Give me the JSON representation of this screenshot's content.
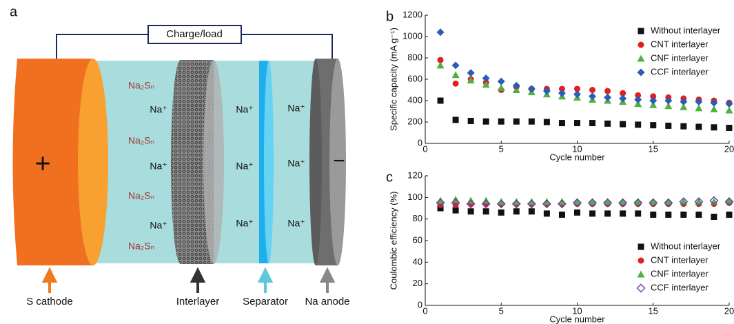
{
  "diagram": {
    "panel": "a",
    "wire_label": "Charge/load",
    "plus": "+",
    "minus": "−",
    "ions": [
      "Na₂Sₙ",
      "Na⁺",
      "Na₂Sₙ",
      "Na⁺",
      "Na₂Sₙ",
      "Na⁺",
      "Na₂Sₙ",
      "Na⁺",
      "Na⁺",
      "Na⁺",
      "Na⁺",
      "Na⁺",
      "Na⁺"
    ],
    "parts": [
      "S cathode",
      "Interlayer",
      "Separator",
      "Na anode"
    ]
  },
  "chart_data": [
    {
      "type": "scatter",
      "panel": "b",
      "xlabel": "Cycle number",
      "ylabel": "Specific capacity (mA g⁻¹)",
      "x": [
        1,
        2,
        3,
        4,
        5,
        6,
        7,
        8,
        9,
        10,
        11,
        12,
        13,
        14,
        15,
        16,
        17,
        18,
        19,
        20
      ],
      "xlim": [
        0,
        20
      ],
      "xticks": [
        0,
        5,
        10,
        15,
        20
      ],
      "ylim": [
        0,
        1200
      ],
      "yticks": [
        0,
        200,
        400,
        600,
        800,
        1000,
        1200
      ],
      "legend": "upper right",
      "series": [
        {
          "name": "Without interlayer",
          "color": "#111111",
          "marker": "square",
          "values": [
            400,
            220,
            210,
            205,
            205,
            205,
            205,
            200,
            190,
            190,
            190,
            185,
            180,
            175,
            170,
            165,
            160,
            155,
            150,
            145
          ]
        },
        {
          "name": "CNT interlayer",
          "color": "#e02020",
          "marker": "circle",
          "values": [
            780,
            560,
            600,
            570,
            500,
            530,
            510,
            510,
            510,
            510,
            500,
            490,
            470,
            450,
            440,
            430,
            420,
            410,
            400,
            380
          ]
        },
        {
          "name": "CNF interlayer",
          "color": "#50b040",
          "marker": "triangle",
          "values": [
            730,
            640,
            590,
            550,
            520,
            500,
            480,
            460,
            440,
            430,
            410,
            400,
            390,
            370,
            360,
            350,
            340,
            330,
            320,
            310
          ]
        },
        {
          "name": "CCF interlayer",
          "color": "#2a5cb8",
          "marker": "diamond",
          "values": [
            1040,
            730,
            660,
            610,
            580,
            540,
            510,
            490,
            470,
            460,
            440,
            430,
            420,
            410,
            400,
            400,
            390,
            390,
            380,
            370
          ]
        }
      ]
    },
    {
      "type": "scatter",
      "panel": "c",
      "xlabel": "Cycle number",
      "ylabel": "Coulombic efficiency (%)",
      "x": [
        1,
        2,
        3,
        4,
        5,
        6,
        7,
        8,
        9,
        10,
        11,
        12,
        13,
        14,
        15,
        16,
        17,
        18,
        19,
        20
      ],
      "xlim": [
        0,
        20
      ],
      "xticks": [
        0,
        5,
        10,
        15,
        20
      ],
      "ylim": [
        0,
        120
      ],
      "yticks": [
        0,
        20,
        40,
        60,
        80,
        100,
        120
      ],
      "legend": "lower right",
      "series": [
        {
          "name": "Without interlayer",
          "color": "#111111",
          "marker": "square",
          "values": [
            90,
            88,
            87,
            87,
            86,
            87,
            87,
            85,
            84,
            86,
            85,
            85,
            85,
            85,
            84,
            84,
            84,
            84,
            82,
            84
          ]
        },
        {
          "name": "CNT interlayer",
          "color": "#e02020",
          "marker": "circle",
          "values": [
            93,
            93,
            94,
            94,
            94,
            94,
            94,
            94,
            94,
            94,
            94,
            94,
            94,
            94,
            94,
            94,
            94,
            94,
            94,
            95
          ]
        },
        {
          "name": "CNF interlayer",
          "color": "#50b040",
          "marker": "triangle",
          "values": [
            97,
            98,
            97,
            97,
            96,
            96,
            96,
            96,
            96,
            96,
            96,
            96,
            96,
            96,
            96,
            96,
            96,
            96,
            96,
            97
          ]
        },
        {
          "name": "CCF interlayer",
          "color": "#6a3aa8",
          "marker": "diamond-open",
          "values": [
            95,
            95,
            94,
            94,
            94,
            94,
            94,
            94,
            94,
            95,
            95,
            95,
            95,
            95,
            95,
            95,
            96,
            96,
            97,
            96
          ]
        }
      ]
    }
  ]
}
